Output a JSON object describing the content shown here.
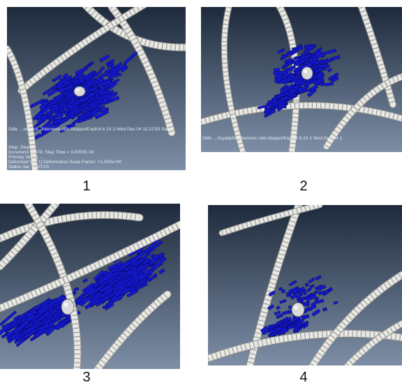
{
  "figure": {
    "panels": [
      {
        "label": "1",
        "stage": "dense symmetric blue cloud around the central pellet"
      },
      {
        "label": "2",
        "stage": "compact cloud, fewer elements"
      },
      {
        "label": "3",
        "stage": "two elongated lobes along the diagonal"
      },
      {
        "label": "4",
        "stage": "sparse scattered elements"
      }
    ],
    "hud": {
      "panel1": {
        "odb_line": "Odb: ...wffad/d...Interness.odb   Abaqus/Explicit 6.10-1   Wed Dec 04 11:22:59 Sar",
        "step_line": "Step: Step-1",
        "increment_line": "Increment    32478: Step Time =    3.0000E-04",
        "primary_var_line": "Primary Var: S, ...",
        "deformed_var_line": "Deformed Var: U   Deformation Scale Factor: +1.000e+00",
        "status_var_line": "Status Var: STATUS"
      },
      "panel2": {
        "odb_line": "Odb: ...rfuyadpfdbdhomecc.odb     Abaqus/Explicit 6.10-1     Wed Dec 04 1"
      }
    },
    "colors": {
      "background_top": "#1e2a3c",
      "background_bottom": "#7d8ea6",
      "elements": "#1418d0",
      "element_edges": "#070a5a",
      "rods": "#e8e8e4",
      "pellet": "#d9d9d9"
    }
  }
}
